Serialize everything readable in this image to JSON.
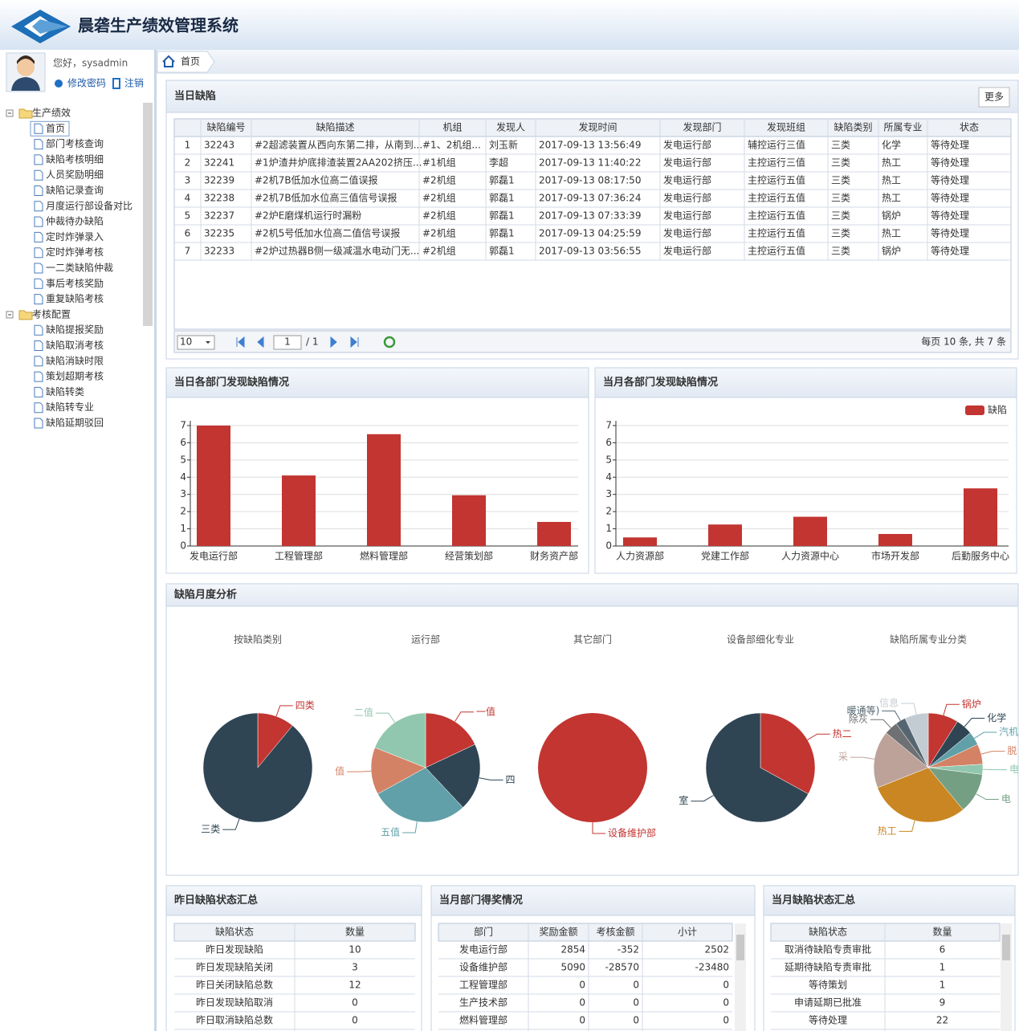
{
  "header": {
    "title": "晨砻生产绩效管理系统"
  },
  "user": {
    "greeting": "您好，sysadmin",
    "change_password": "修改密码",
    "logout": "注销"
  },
  "nav_tree": [
    {
      "label": "生产绩效",
      "items": [
        "首页",
        "部门考核查询",
        "缺陷考核明细",
        "人员奖励明细",
        "缺陷记录查询",
        "月度运行部设备对比",
        "仲裁待办缺陷",
        "定时炸弹录入",
        "定时炸弹考核",
        "一二类缺陷仲裁",
        "事后考核奖励",
        "重复缺陷考核"
      ]
    },
    {
      "label": "考核配置",
      "items": [
        "缺陷提报奖励",
        "缺陷取消考核",
        "缺陷消缺时限",
        "策划超期考核",
        "缺陷转类",
        "缺陷转专业",
        "缺陷延期驳回"
      ]
    }
  ],
  "tabs": [
    "首页"
  ],
  "defects_panel": {
    "title": "当日缺陷",
    "more": "更多",
    "columns": [
      "缺陷编号",
      "缺陷描述",
      "机组",
      "发现人",
      "发现时间",
      "发现部门",
      "发现班组",
      "缺陷类别",
      "所属专业",
      "状态"
    ],
    "rows": [
      [
        "1",
        "32243",
        "#2超滤装置从西向东第二排，从南到...",
        "#1、2机组...",
        "刘玉新",
        "2017-09-13 13:56:49",
        "发电运行部",
        "辅控运行三值",
        "三类",
        "化学",
        "等待处理"
      ],
      [
        "2",
        "32241",
        "#1炉渣井炉底排渣装置2AA202挤压...",
        "#1机组",
        "李超",
        "2017-09-13 11:40:22",
        "发电运行部",
        "主控运行三值",
        "三类",
        "热工",
        "等待处理"
      ],
      [
        "3",
        "32239",
        "#2机7B低加水位高二值误报",
        "#2机组",
        "郭磊1",
        "2017-09-13 08:17:50",
        "发电运行部",
        "主控运行五值",
        "三类",
        "热工",
        "等待处理"
      ],
      [
        "4",
        "32238",
        "#2机7B低加水位高三值信号误报",
        "#2机组",
        "郭磊1",
        "2017-09-13 07:36:24",
        "发电运行部",
        "主控运行五值",
        "三类",
        "热工",
        "等待处理"
      ],
      [
        "5",
        "32237",
        "#2炉E磨煤机运行时漏粉",
        "#2机组",
        "郭磊1",
        "2017-09-13 07:33:39",
        "发电运行部",
        "主控运行五值",
        "三类",
        "锅炉",
        "等待处理"
      ],
      [
        "6",
        "32235",
        "#2机5号低加水位高二值信号误报",
        "#2机组",
        "郭磊1",
        "2017-09-13 04:25:59",
        "发电运行部",
        "主控运行五值",
        "三类",
        "热工",
        "等待处理"
      ],
      [
        "7",
        "32233",
        "#2炉过热器B侧一级减温水电动门无...",
        "#2机组",
        "郭磊1",
        "2017-09-13 03:56:55",
        "发电运行部",
        "主控运行五值",
        "三类",
        "锅炉",
        "等待处理"
      ]
    ],
    "pager": {
      "page_size": "10",
      "page": "1",
      "total_pages": "/ 1",
      "summary": "每页 10 条, 共 7 条"
    }
  },
  "monthly_panel": {
    "title": "缺陷月度分析"
  },
  "chart_data": [
    {
      "type": "bar",
      "title": "当日各部门发现缺陷情况",
      "categories": [
        "发电运行部",
        "工程管理部",
        "燃料管理部",
        "经营策划部",
        "财务资产部"
      ],
      "values": [
        7,
        4.1,
        6.5,
        2.95,
        1.4
      ],
      "color": "#c23531",
      "ylim": [
        0,
        7
      ],
      "yticks": [
        0,
        1,
        2,
        3,
        4,
        5,
        6,
        7
      ],
      "grid": true
    },
    {
      "type": "bar",
      "title": "当月各部门发现缺陷情况",
      "categories": [
        "人力资源部",
        "党建工作部",
        "人力资源中心",
        "市场开发部",
        "后勤服务中心"
      ],
      "series": [
        {
          "name": "缺陷",
          "color": "#c23531",
          "values": [
            0.5,
            1.25,
            1.7,
            0.7,
            3.35
          ]
        }
      ],
      "legend": "top-right",
      "ylim": [
        0,
        7
      ],
      "yticks": [
        0,
        1,
        2,
        3,
        4,
        5,
        6,
        7
      ],
      "grid": true
    },
    {
      "type": "pie",
      "title": "按缺陷类别",
      "categories": [
        "四类",
        "三类"
      ],
      "values": [
        11,
        89
      ],
      "colors": [
        "#c23531",
        "#2f4554"
      ]
    },
    {
      "type": "pie",
      "title": "运行部",
      "categories": [
        "一值",
        "四",
        "五值",
        "值",
        "二值"
      ],
      "values": [
        18,
        20,
        29,
        14,
        19
      ],
      "colors": [
        "#c23531",
        "#2f4554",
        "#61a0a8",
        "#d48265",
        "#91c7ae"
      ]
    },
    {
      "type": "pie",
      "title": "其它部门",
      "categories": [
        "设备维护部"
      ],
      "values": [
        100
      ],
      "colors": [
        "#c23531"
      ]
    },
    {
      "type": "pie",
      "title": "设备部细化专业",
      "categories": [
        "热二",
        "室"
      ],
      "values": [
        33,
        67
      ],
      "colors": [
        "#c23531",
        "#2f4554"
      ]
    },
    {
      "type": "pie",
      "title": "缺陷所属专业分类",
      "categories": [
        "锅炉",
        "化学",
        "汽机",
        "脱",
        "电",
        "电",
        "热工",
        "采",
        "除灰",
        "暖通等)",
        "信息"
      ],
      "values": [
        9,
        5,
        4,
        6,
        3,
        12,
        30,
        17,
        4,
        3,
        7
      ],
      "colors": [
        "#c23531",
        "#2f4554",
        "#61a0a8",
        "#d48265",
        "#91c7ae",
        "#749f83",
        "#ca8622",
        "#bda29a",
        "#6e7074",
        "#546570",
        "#c4ccd3"
      ]
    }
  ],
  "tables": [
    {
      "title": "昨日缺陷状态汇总",
      "columns": [
        "缺陷状态",
        "数量"
      ],
      "rows": [
        [
          "昨日发现缺陷",
          10
        ],
        [
          "昨日发现缺陷关闭",
          3
        ],
        [
          "昨日关闭缺陷总数",
          12
        ],
        [
          "昨日发现缺陷取消",
          0
        ],
        [
          "昨日取消缺陷总数",
          0
        ]
      ]
    },
    {
      "title": "当月部门得奖情况",
      "columns": [
        "部门",
        "奖励金额",
        "考核金额",
        "小计"
      ],
      "rows": [
        [
          "发电运行部",
          2854,
          -352,
          2502
        ],
        [
          "设备维护部",
          5090,
          -28570,
          -23480
        ],
        [
          "工程管理部",
          0,
          0,
          0
        ],
        [
          "生产技术部",
          0,
          0,
          0
        ],
        [
          "燃料管理部",
          0,
          0,
          0
        ]
      ]
    },
    {
      "title": "当月缺陷状态汇总",
      "columns": [
        "缺陷状态",
        "数量"
      ],
      "rows": [
        [
          "取消待缺陷专责审批",
          6
        ],
        [
          "延期待缺陷专责审批",
          1
        ],
        [
          "等待策划",
          1
        ],
        [
          "申请延期已批准",
          9
        ],
        [
          "等待处理",
          22
        ]
      ]
    }
  ]
}
